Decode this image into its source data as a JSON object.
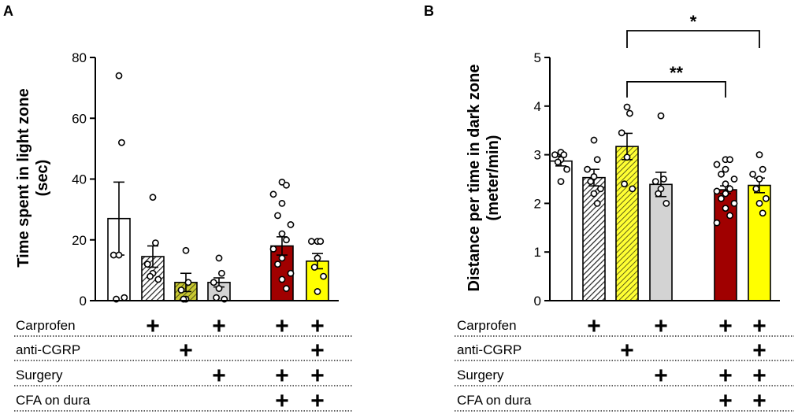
{
  "chart_data": [
    {
      "panel": "A",
      "type": "bar",
      "ylabel": "Time spent in light zone (sec)",
      "ylabel_lines": [
        "Time spent in light zone",
        "(sec)"
      ],
      "ylim": [
        0,
        80
      ],
      "yticks": [
        0,
        20,
        40,
        60,
        80
      ],
      "series": [
        {
          "name": "group1",
          "mean": 27,
          "sem": 12,
          "color": "#ffffff",
          "pattern": "none",
          "points": [
            74,
            52,
            15,
            15,
            0.5,
            1
          ]
        },
        {
          "name": "group2",
          "mean": 14.5,
          "sem": 3.5,
          "color": "#ffffff",
          "pattern": "hatch-black",
          "points": [
            34,
            19,
            12,
            9,
            8,
            7
          ]
        },
        {
          "name": "group3",
          "mean": 6,
          "sem": 3,
          "color": "#c8c832",
          "pattern": "hatch-dark",
          "points": [
            16.5,
            6,
            3.5,
            0.5,
            0.5
          ]
        },
        {
          "name": "group4",
          "mean": 6,
          "sem": 1.5,
          "color": "#d3d3d3",
          "pattern": "none",
          "points": [
            14,
            9,
            6,
            4,
            1,
            0.5
          ]
        },
        {
          "name": "group5",
          "mean": 18,
          "sem": 3,
          "color": "#a00000",
          "pattern": "none",
          "points": [
            39,
            38,
            35,
            32,
            28,
            25,
            22,
            20,
            17,
            14,
            12,
            9,
            7,
            4
          ]
        },
        {
          "name": "group6",
          "mean": 13,
          "sem": 2.5,
          "color": "#ffff00",
          "pattern": "none",
          "points": [
            19.5,
            19.5,
            19.5,
            14,
            11,
            8,
            3
          ]
        }
      ]
    },
    {
      "panel": "B",
      "type": "bar",
      "ylabel": "Distance per time in dark zone (meter/min)",
      "ylabel_lines": [
        "Distance per time in dark zone",
        "(meter/min)"
      ],
      "ylim": [
        0,
        5
      ],
      "yticks": [
        0,
        1,
        2,
        3,
        4,
        5
      ],
      "series": [
        {
          "name": "group1",
          "mean": 2.87,
          "sem": 0.1,
          "color": "#ffffff",
          "pattern": "none",
          "points": [
            3.05,
            3.0,
            3.0,
            2.9,
            2.85,
            2.7,
            2.45
          ]
        },
        {
          "name": "group2",
          "mean": 2.53,
          "sem": 0.17,
          "color": "#ffffff",
          "pattern": "hatch-black",
          "points": [
            3.3,
            2.9,
            2.7,
            2.55,
            2.45,
            2.3,
            2.2,
            2.0
          ]
        },
        {
          "name": "group3",
          "mean": 3.17,
          "sem": 0.27,
          "color": "#ffff33",
          "pattern": "hatch-dark",
          "points": [
            3.98,
            3.85,
            3.45,
            2.95,
            2.4,
            2.3
          ]
        },
        {
          "name": "group4",
          "mean": 2.39,
          "sem": 0.25,
          "color": "#d3d3d3",
          "pattern": "none",
          "points": [
            3.8,
            2.5,
            2.45,
            2.3,
            2.2,
            2.0
          ]
        },
        {
          "name": "group5",
          "mean": 2.28,
          "sem": 0.08,
          "color": "#a00000",
          "pattern": "none",
          "points": [
            2.9,
            2.9,
            2.8,
            2.7,
            2.6,
            2.5,
            2.4,
            2.3,
            2.25,
            2.2,
            2.1,
            2.0,
            1.9,
            1.75,
            1.6
          ]
        },
        {
          "name": "group6",
          "mean": 2.37,
          "sem": 0.15,
          "color": "#ffff00",
          "pattern": "none",
          "points": [
            3.0,
            2.7,
            2.6,
            2.5,
            2.3,
            2.1,
            2.0,
            1.8
          ]
        }
      ],
      "significance": [
        {
          "from": 3,
          "to": 6,
          "label": "*",
          "y": 5.55
        },
        {
          "from": 3,
          "to": 5,
          "label": "**",
          "y": 4.5
        }
      ]
    }
  ],
  "conditions": {
    "rows": [
      {
        "label": "Carprofen",
        "groups": [
          2,
          4,
          5,
          6
        ]
      },
      {
        "label": "anti-CGRP",
        "groups": [
          3,
          6
        ]
      },
      {
        "label": "Surgery",
        "groups": [
          4,
          5,
          6
        ]
      },
      {
        "label": "CFA on dura",
        "groups": [
          5,
          6
        ]
      }
    ],
    "mark": "+"
  }
}
